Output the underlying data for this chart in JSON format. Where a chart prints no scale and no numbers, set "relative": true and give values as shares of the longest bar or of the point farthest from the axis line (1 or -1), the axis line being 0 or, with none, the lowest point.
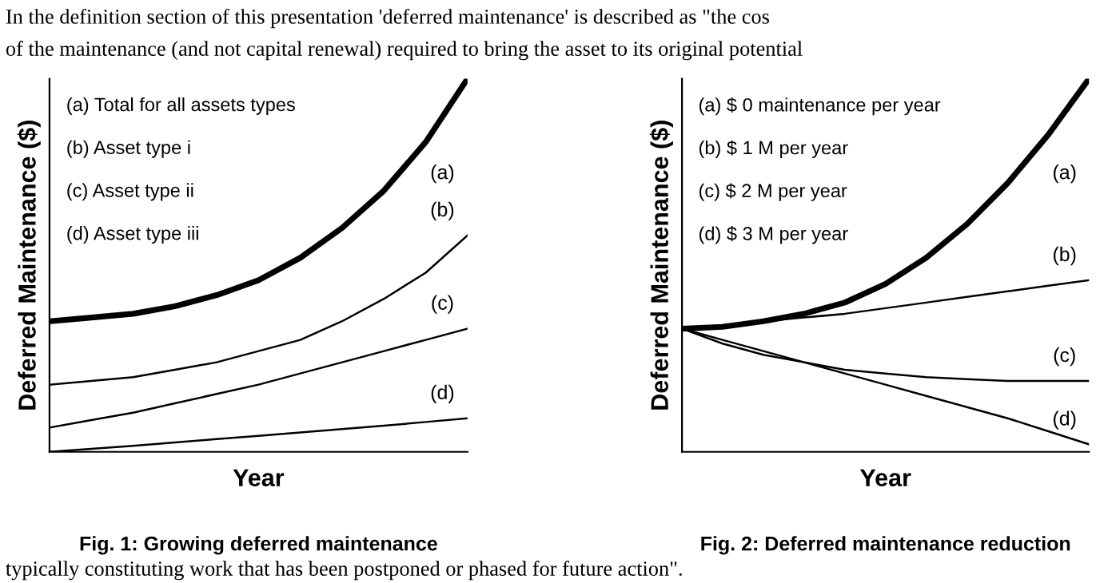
{
  "chart_data": [
    {
      "type": "line",
      "relative": true,
      "title": "Fig. 1: Growing deferred maintenance",
      "xlabel": "Year",
      "ylabel": "Deferred Maintenance ($)",
      "categories": [
        null,
        null,
        null,
        null,
        null,
        null,
        null,
        null,
        null,
        null,
        null
      ],
      "annotations": [
        "(a) Total for all assets types",
        "(b) Asset type i",
        "(c) Asset type ii",
        "(d) Asset type iii"
      ],
      "series": [
        {
          "name": "(a)",
          "color": "#000000",
          "values": [
            0.35,
            0.36,
            0.37,
            0.39,
            0.42,
            0.46,
            0.52,
            0.6,
            0.7,
            0.83,
            1.0
          ]
        },
        {
          "name": "(b)",
          "color": "#000000",
          "values": [
            0.18,
            0.19,
            0.2,
            0.22,
            0.24,
            0.27,
            0.3,
            0.35,
            0.41,
            0.48,
            0.58
          ]
        },
        {
          "name": "(c)",
          "color": "#000000",
          "values": [
            0.065,
            0.085,
            0.105,
            0.13,
            0.155,
            0.18,
            0.21,
            0.24,
            0.27,
            0.3,
            0.33
          ]
        },
        {
          "name": "(d)",
          "color": "#000000",
          "values": [
            0,
            0.008,
            0.016,
            0.025,
            0.034,
            0.043,
            0.052,
            0.061,
            0.07,
            0.08,
            0.09
          ]
        }
      ]
    },
    {
      "type": "line",
      "relative": true,
      "title": "Fig. 2: Deferred maintenance reduction",
      "xlabel": "Year",
      "ylabel": "Deferred Maintenance ($)",
      "categories": [
        null,
        null,
        null,
        null,
        null,
        null,
        null,
        null,
        null,
        null,
        null
      ],
      "annotations": [
        "(a) $ 0 maintenance per year",
        "(b) $ 1 M per year",
        "(c) $ 2 M per year",
        "(d) $ 3 M per year"
      ],
      "series": [
        {
          "name": "(a)",
          "color": "#000000",
          "values": [
            0.33,
            0.335,
            0.35,
            0.37,
            0.4,
            0.45,
            0.52,
            0.61,
            0.72,
            0.85,
            1.0
          ]
        },
        {
          "name": "(b)",
          "color": "#000000",
          "values": [
            0.33,
            0.34,
            0.35,
            0.36,
            0.37,
            0.385,
            0.4,
            0.415,
            0.43,
            0.445,
            0.46
          ]
        },
        {
          "name": "(c)",
          "color": "#000000",
          "values": [
            0.33,
            0.29,
            0.26,
            0.24,
            0.22,
            0.21,
            0.2,
            0.195,
            0.19,
            0.19,
            0.19
          ]
        },
        {
          "name": "(d)",
          "color": "#000000",
          "values": [
            0.33,
            0.3,
            0.27,
            0.24,
            0.21,
            0.18,
            0.15,
            0.12,
            0.09,
            0.055,
            0.02
          ]
        }
      ]
    },
    {
      "type": "other",
      "annotations": [
        "In the definition section of this presentation 'deferred maintenance' is described as \"the cos",
        "of the maintenance (and not capital renewal) required to bring the asset to its original potential",
        "typically constituting work that has been postponed or phased for future action\"."
      ]
    }
  ]
}
